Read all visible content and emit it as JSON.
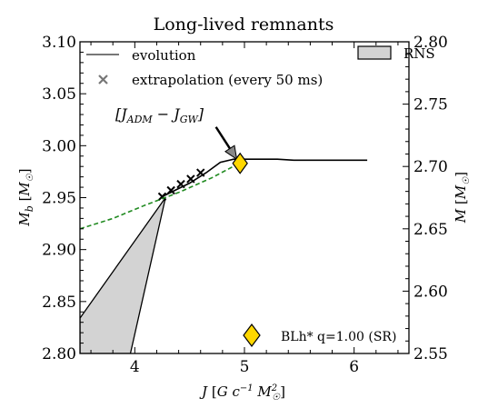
{
  "chart_data": {
    "type": "line",
    "title": "Long-lived remnants",
    "xlabel": "J [G c⁻¹ M☉²]",
    "ylabel": "M_b [M☉]",
    "ylabel_right": "M [M☉]",
    "xlim": [
      3.5,
      6.5
    ],
    "ylim": [
      2.8,
      3.1
    ],
    "ylim_right": [
      2.55,
      2.8
    ],
    "x_ticks": [
      4,
      5,
      6
    ],
    "y_ticks": [
      2.8,
      2.85,
      2.9,
      2.95,
      3.0,
      3.05,
      3.1
    ],
    "y_ticks_right": [
      2.55,
      2.6,
      2.65,
      2.7,
      2.75,
      2.8
    ],
    "x_tick_labels": [
      "4",
      "5",
      "6"
    ],
    "y_tick_labels": [
      "2.80",
      "2.85",
      "2.90",
      "2.95",
      "3.00",
      "3.05",
      "3.10"
    ],
    "y_tick_labels_right": [
      "2.55",
      "2.60",
      "2.65",
      "2.70",
      "2.75",
      "2.80"
    ],
    "legend": {
      "placement": "top-left",
      "entries": [
        "evolution",
        "extrapolation (every 50 ms)"
      ]
    },
    "legend_rns": {
      "placement": "top-right",
      "label": "RNS"
    },
    "series": [
      {
        "name": "evolution",
        "style": "solid",
        "color": "#000000",
        "points": [
          [
            4.25,
            2.951
          ],
          [
            4.5,
            2.964
          ],
          [
            4.65,
            2.974
          ],
          [
            4.78,
            2.984
          ],
          [
            4.9,
            2.987
          ],
          [
            5.1,
            2.987
          ],
          [
            5.3,
            2.987
          ],
          [
            5.45,
            2.986
          ],
          [
            6.12,
            2.986
          ]
        ]
      },
      {
        "name": "extrapolation (every 50 ms)",
        "style": "marker-x",
        "color": "#000000",
        "points": [
          [
            4.25,
            2.951
          ],
          [
            4.33,
            2.957
          ],
          [
            4.42,
            2.963
          ],
          [
            4.51,
            2.968
          ],
          [
            4.6,
            2.974
          ]
        ]
      },
      {
        "name": "RNS sequence",
        "style": "dashed",
        "color": "#228b22",
        "points": [
          [
            3.5,
            2.92
          ],
          [
            3.8,
            2.93
          ],
          [
            4.1,
            2.943
          ],
          [
            4.4,
            2.955
          ],
          [
            4.7,
            2.969
          ],
          [
            4.95,
            2.983
          ]
        ]
      }
    ],
    "region": {
      "color": "#d3d3d3",
      "polygon": [
        [
          3.5,
          2.834
        ],
        [
          4.28,
          2.95
        ],
        [
          3.96,
          2.8
        ],
        [
          3.5,
          2.8
        ]
      ]
    },
    "diamond": {
      "x": 4.96,
      "y": 2.983,
      "color": "#ffd700"
    },
    "annotation": {
      "text": "[J_ADM − J_GW]",
      "text_at": [
        3.82,
        3.035
      ],
      "arrow_from": [
        4.74,
        3.018
      ],
      "arrow_to": [
        4.93,
        2.987
      ]
    },
    "case_label": {
      "text": "BLh* q=1.00 (SR)",
      "marker_color": "#ffd700",
      "placement": "bottom-right"
    }
  }
}
